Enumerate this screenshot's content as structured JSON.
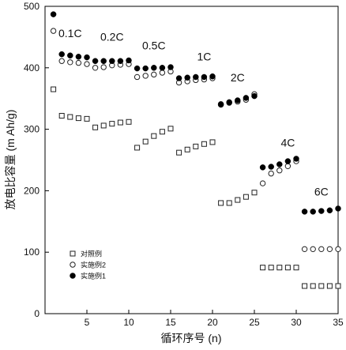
{
  "chart_data": {
    "type": "scatter",
    "xlabel": "循环序号 (n)",
    "ylabel": "放电比容量 (m Ah/g)",
    "xlim": [
      0,
      35
    ],
    "ylim": [
      0,
      500
    ],
    "x_ticks": [
      5,
      10,
      15,
      20,
      25,
      30,
      35
    ],
    "y_ticks": [
      0,
      100,
      200,
      300,
      400,
      500
    ],
    "grid": false,
    "legend_position": "bottom-left",
    "rate_labels": [
      "0.1C",
      "0.2C",
      "0.5C",
      "1C",
      "2C",
      "4C",
      "6C"
    ],
    "series": [
      {
        "name": "对照例",
        "marker": "open-square",
        "x": [
          1,
          2,
          3,
          4,
          5,
          6,
          7,
          8,
          9,
          10,
          11,
          12,
          13,
          14,
          15,
          16,
          17,
          18,
          19,
          20,
          21,
          22,
          23,
          24,
          25,
          26,
          27,
          28,
          29,
          30,
          31,
          32,
          33,
          34,
          35
        ],
        "values": [
          365,
          322,
          320,
          318,
          317,
          303,
          306,
          309,
          311,
          312,
          270,
          280,
          289,
          296,
          301,
          262,
          267,
          272,
          276,
          279,
          180,
          180,
          185,
          190,
          197,
          75,
          75,
          75,
          75,
          75,
          45,
          45,
          45,
          45,
          45
        ]
      },
      {
        "name": "实施例2",
        "marker": "open-circle",
        "x": [
          1,
          2,
          3,
          4,
          5,
          6,
          7,
          8,
          9,
          10,
          11,
          12,
          13,
          14,
          15,
          16,
          17,
          18,
          19,
          20,
          21,
          22,
          23,
          24,
          25,
          26,
          27,
          28,
          29,
          30,
          31,
          32,
          33,
          34,
          35
        ],
        "values": [
          460,
          411,
          409,
          408,
          406,
          400,
          401,
          404,
          405,
          406,
          385,
          387,
          389,
          392,
          394,
          376,
          378,
          380,
          381,
          383,
          341,
          343,
          345,
          348,
          357,
          212,
          228,
          233,
          240,
          248,
          105,
          105,
          105,
          105,
          105
        ]
      },
      {
        "name": "实施例1",
        "marker": "filled-circle",
        "x": [
          1,
          2,
          3,
          4,
          5,
          6,
          7,
          8,
          9,
          10,
          11,
          12,
          13,
          14,
          15,
          16,
          17,
          18,
          19,
          20,
          21,
          22,
          23,
          24,
          25,
          26,
          27,
          28,
          29,
          30,
          31,
          32,
          33,
          34,
          35
        ],
        "values": [
          487,
          422,
          420,
          418,
          417,
          411,
          411,
          411,
          411,
          412,
          399,
          399,
          400,
          400,
          401,
          383,
          384,
          385,
          385,
          386,
          340,
          344,
          347,
          351,
          354,
          238,
          239,
          243,
          248,
          252,
          166,
          166,
          167,
          168,
          171
        ]
      }
    ]
  }
}
